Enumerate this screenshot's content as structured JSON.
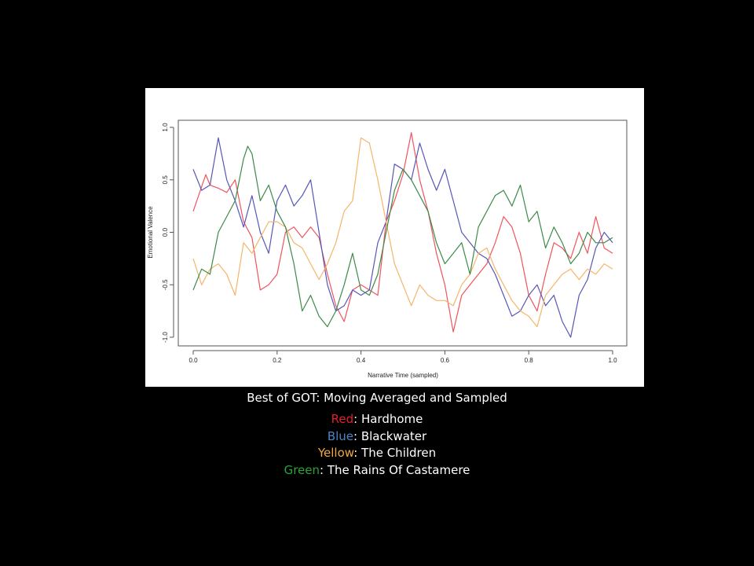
{
  "caption": {
    "title": "Best of GOT: Moving Averaged and Sampled",
    "legend": [
      {
        "color_word": "Red",
        "separator": ": ",
        "name": "Hardhome",
        "color": "#e0202a"
      },
      {
        "color_word": "Blue",
        "separator": ": ",
        "name": "Blackwater",
        "color": "#4f84c4"
      },
      {
        "color_word": "Yellow",
        "separator": ": ",
        "name": "The Children",
        "color": "#f1a73e"
      },
      {
        "color_word": "Green",
        "separator": ": ",
        "name": "The Rains Of Castamere",
        "color": "#2aa33a"
      }
    ]
  },
  "chart_data": {
    "type": "line",
    "xlabel": "Narrative Time (sampled)",
    "ylabel": "Emotional Valence",
    "xlim": [
      0.0,
      1.0
    ],
    "ylim": [
      -1.0,
      1.0
    ],
    "xticks": [
      "0.0",
      "0.2",
      "0.4",
      "0.6",
      "0.8",
      "1.0"
    ],
    "yticks": [
      "-1.0",
      "-0.5",
      "0.0",
      "0.5",
      "1.0"
    ],
    "grid": false,
    "series": [
      {
        "name": "Hardhome",
        "color": "#f0545c",
        "x": [
          0.0,
          0.03,
          0.04,
          0.06,
          0.08,
          0.1,
          0.12,
          0.14,
          0.16,
          0.18,
          0.2,
          0.22,
          0.24,
          0.26,
          0.28,
          0.3,
          0.32,
          0.34,
          0.36,
          0.38,
          0.4,
          0.42,
          0.44,
          0.46,
          0.48,
          0.5,
          0.52,
          0.54,
          0.56,
          0.58,
          0.6,
          0.62,
          0.64,
          0.66,
          0.68,
          0.7,
          0.72,
          0.74,
          0.76,
          0.78,
          0.8,
          0.82,
          0.84,
          0.86,
          0.88,
          0.9,
          0.92,
          0.94,
          0.96,
          0.98,
          1.0
        ],
        "y": [
          0.2,
          0.55,
          0.45,
          0.42,
          0.38,
          0.5,
          0.1,
          -0.05,
          -0.55,
          -0.5,
          -0.4,
          0.0,
          0.05,
          -0.05,
          0.05,
          -0.05,
          -0.4,
          -0.7,
          -0.85,
          -0.55,
          -0.5,
          -0.55,
          -0.6,
          0.1,
          0.3,
          0.55,
          0.95,
          0.5,
          0.2,
          -0.2,
          -0.5,
          -0.95,
          -0.6,
          -0.5,
          -0.4,
          -0.3,
          -0.1,
          0.15,
          0.05,
          -0.2,
          -0.6,
          -0.75,
          -0.4,
          -0.1,
          -0.15,
          -0.25,
          0.0,
          -0.2,
          0.15,
          -0.15,
          -0.2
        ]
      },
      {
        "name": "Blackwater",
        "color": "#5656b8",
        "x": [
          0.0,
          0.02,
          0.04,
          0.06,
          0.08,
          0.1,
          0.12,
          0.14,
          0.16,
          0.18,
          0.2,
          0.22,
          0.24,
          0.26,
          0.28,
          0.3,
          0.32,
          0.34,
          0.36,
          0.38,
          0.4,
          0.42,
          0.44,
          0.46,
          0.48,
          0.5,
          0.52,
          0.54,
          0.56,
          0.58,
          0.6,
          0.62,
          0.64,
          0.66,
          0.68,
          0.7,
          0.72,
          0.74,
          0.76,
          0.78,
          0.8,
          0.82,
          0.84,
          0.86,
          0.88,
          0.9,
          0.92,
          0.94,
          0.96,
          0.98,
          1.0
        ],
        "y": [
          0.6,
          0.4,
          0.45,
          0.9,
          0.5,
          0.3,
          0.05,
          0.35,
          0.0,
          -0.2,
          0.3,
          0.45,
          0.25,
          0.35,
          0.5,
          0.0,
          -0.5,
          -0.75,
          -0.7,
          -0.55,
          -0.6,
          -0.55,
          -0.1,
          0.1,
          0.65,
          0.6,
          0.5,
          0.85,
          0.6,
          0.4,
          0.6,
          0.3,
          0.0,
          -0.1,
          -0.2,
          -0.25,
          -0.4,
          -0.6,
          -0.8,
          -0.75,
          -0.6,
          -0.5,
          -0.7,
          -0.6,
          -0.85,
          -1.0,
          -0.6,
          -0.45,
          -0.15,
          0.0,
          -0.1
        ]
      },
      {
        "name": "The Children",
        "color": "#f5b56a",
        "x": [
          0.0,
          0.02,
          0.04,
          0.06,
          0.08,
          0.1,
          0.12,
          0.14,
          0.16,
          0.18,
          0.2,
          0.22,
          0.24,
          0.26,
          0.28,
          0.3,
          0.32,
          0.34,
          0.36,
          0.38,
          0.4,
          0.42,
          0.44,
          0.46,
          0.48,
          0.5,
          0.52,
          0.54,
          0.56,
          0.58,
          0.6,
          0.62,
          0.64,
          0.66,
          0.68,
          0.7,
          0.72,
          0.74,
          0.76,
          0.78,
          0.8,
          0.82,
          0.84,
          0.86,
          0.88,
          0.9,
          0.92,
          0.94,
          0.96,
          0.98,
          1.0
        ],
        "y": [
          -0.25,
          -0.5,
          -0.35,
          -0.3,
          -0.4,
          -0.6,
          -0.1,
          -0.2,
          -0.05,
          0.1,
          0.1,
          0.05,
          -0.1,
          -0.15,
          -0.3,
          -0.45,
          -0.3,
          -0.1,
          0.2,
          0.3,
          0.9,
          0.85,
          0.5,
          0.1,
          -0.3,
          -0.5,
          -0.7,
          -0.5,
          -0.6,
          -0.65,
          -0.65,
          -0.7,
          -0.5,
          -0.4,
          -0.2,
          -0.15,
          -0.35,
          -0.5,
          -0.65,
          -0.75,
          -0.8,
          -0.9,
          -0.6,
          -0.5,
          -0.4,
          -0.35,
          -0.45,
          -0.35,
          -0.4,
          -0.3,
          -0.35
        ]
      },
      {
        "name": "The Rains Of Castamere",
        "color": "#3d8a4a",
        "x": [
          0.0,
          0.02,
          0.04,
          0.06,
          0.08,
          0.1,
          0.12,
          0.13,
          0.14,
          0.16,
          0.18,
          0.2,
          0.22,
          0.24,
          0.26,
          0.28,
          0.3,
          0.32,
          0.34,
          0.36,
          0.38,
          0.4,
          0.42,
          0.44,
          0.46,
          0.48,
          0.5,
          0.52,
          0.54,
          0.56,
          0.58,
          0.6,
          0.62,
          0.64,
          0.66,
          0.68,
          0.7,
          0.72,
          0.74,
          0.76,
          0.78,
          0.8,
          0.82,
          0.84,
          0.86,
          0.88,
          0.9,
          0.92,
          0.94,
          0.96,
          0.98,
          1.0
        ],
        "y": [
          -0.55,
          -0.35,
          -0.4,
          0.0,
          0.15,
          0.3,
          0.7,
          0.82,
          0.75,
          0.3,
          0.45,
          0.2,
          0.05,
          -0.3,
          -0.75,
          -0.6,
          -0.8,
          -0.9,
          -0.75,
          -0.5,
          -0.2,
          -0.55,
          -0.6,
          -0.4,
          0.0,
          0.4,
          0.6,
          0.5,
          0.35,
          0.2,
          -0.1,
          -0.3,
          -0.2,
          -0.1,
          -0.4,
          0.05,
          0.2,
          0.35,
          0.4,
          0.25,
          0.45,
          0.1,
          0.2,
          -0.15,
          0.05,
          -0.1,
          -0.3,
          -0.2,
          0.0,
          -0.1,
          -0.1,
          -0.05
        ]
      }
    ]
  }
}
